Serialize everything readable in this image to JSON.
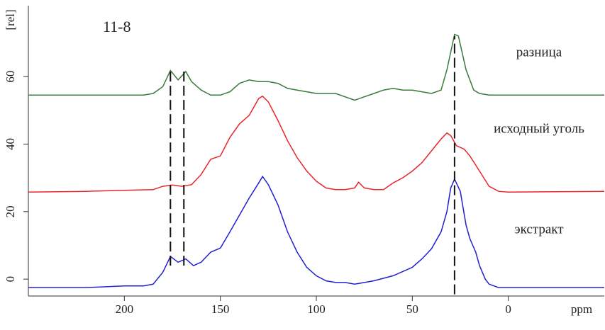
{
  "chart_data": {
    "type": "line",
    "annotation": "11-8",
    "ylabel": "[rel]",
    "xlabel": "ppm",
    "xlim": [
      250,
      -50
    ],
    "xticks": [
      200,
      150,
      100,
      50,
      0
    ],
    "ylim": [
      -5,
      81
    ],
    "yticks": [
      0,
      20,
      40,
      60
    ],
    "series": [
      {
        "name": "разница",
        "color": "#3a7a3a",
        "x": [
          250,
          220,
          200,
          190,
          185,
          180,
          176,
          172,
          168,
          165,
          160,
          155,
          150,
          145,
          140,
          135,
          130,
          125,
          120,
          115,
          110,
          100,
          90,
          80,
          75,
          70,
          65,
          60,
          55,
          50,
          45,
          40,
          35,
          32,
          28,
          26,
          22,
          18,
          15,
          10,
          0,
          -50
        ],
        "values": [
          54.5,
          54.5,
          54.5,
          54.5,
          55,
          57,
          61.8,
          59,
          61.5,
          58.5,
          56,
          54.5,
          54.5,
          55.5,
          58,
          59,
          58.5,
          58.5,
          58,
          56.5,
          56,
          55,
          55,
          53,
          54,
          55,
          56,
          56.5,
          56,
          56,
          55.5,
          55,
          56,
          62,
          72.5,
          72,
          62,
          56,
          55,
          54.5,
          54.5,
          54.5
        ]
      },
      {
        "name": "исходный уголь",
        "color": "#e8262a",
        "x": [
          250,
          220,
          200,
          185,
          180,
          175,
          170,
          165,
          160,
          155,
          150,
          145,
          140,
          135,
          130,
          128,
          125,
          120,
          115,
          110,
          105,
          100,
          95,
          90,
          85,
          80,
          78,
          75,
          70,
          65,
          60,
          55,
          50,
          45,
          40,
          35,
          32,
          30,
          27,
          23,
          20,
          15,
          10,
          5,
          0,
          -50
        ],
        "values": [
          25.8,
          26,
          26.3,
          26.5,
          27.5,
          27.9,
          27.5,
          28,
          31,
          35.5,
          36.5,
          42,
          46,
          48.5,
          53.5,
          54.2,
          52.5,
          47,
          41,
          36,
          32,
          29,
          27,
          26.5,
          26.5,
          27,
          28.7,
          27,
          26.5,
          26.5,
          28.5,
          30,
          32,
          34.5,
          38,
          41.5,
          43.3,
          42.5,
          39.5,
          38.5,
          36.5,
          32,
          27.5,
          26,
          25.8,
          26
        ]
      },
      {
        "name": "экстракт",
        "color": "#2020d0",
        "x": [
          250,
          220,
          200,
          190,
          185,
          180,
          176,
          172,
          168,
          164,
          160,
          155,
          150,
          145,
          140,
          135,
          130,
          128,
          125,
          120,
          115,
          110,
          105,
          100,
          95,
          90,
          85,
          80,
          75,
          70,
          60,
          50,
          45,
          40,
          35,
          32,
          30,
          28,
          25,
          22,
          20,
          17,
          15,
          12,
          10,
          5,
          0,
          -50
        ],
        "values": [
          -2.5,
          -2.5,
          -2,
          -2,
          -1.5,
          2,
          6.7,
          5,
          6,
          4,
          5,
          8,
          9.2,
          14,
          19,
          24,
          28.5,
          30.4,
          28,
          22,
          14,
          8,
          3.5,
          1,
          -0.5,
          -1,
          -1,
          -1.5,
          -1,
          -0.5,
          1,
          3.5,
          6,
          9,
          14,
          20,
          27,
          29.6,
          26,
          16,
          12,
          8,
          4,
          0,
          -1.5,
          -2.5,
          -2.5,
          -2.5
        ]
      }
    ],
    "reference_lines": [
      {
        "x": 176,
        "y_from": 4,
        "y_to": 61.5
      },
      {
        "x": 169,
        "y_from": 4,
        "y_to": 61.5
      },
      {
        "x": 28,
        "y_from": -4.5,
        "y_to": 72
      }
    ]
  }
}
